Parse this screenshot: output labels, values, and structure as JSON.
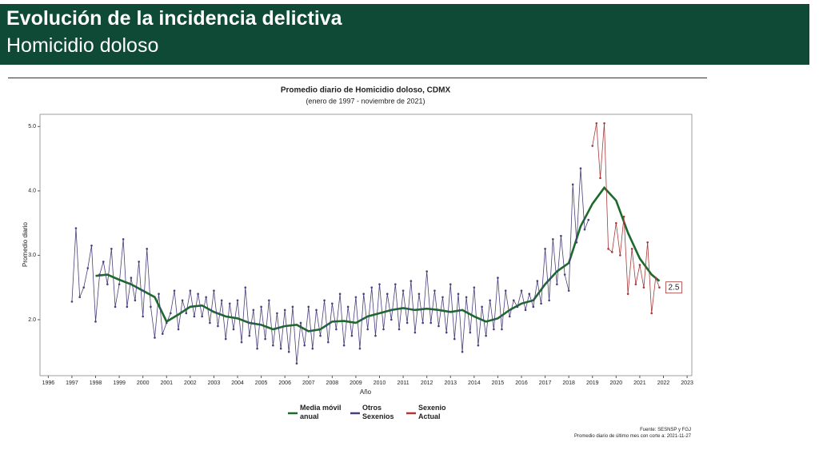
{
  "header": {
    "title": "Evolución de la incidencia delictiva",
    "subtitle": "Homicidio doloso"
  },
  "chart_data": {
    "type": "line",
    "title": "Promedio diario de Homicidio doloso, CDMX",
    "subtitle": "(enero de 1997 - noviembre de 2021)",
    "x_label": "Año",
    "y_label": "Promedio diario",
    "xlim": [
      1995.65,
      2023.2
    ],
    "xticks": [
      1996,
      1997,
      1998,
      1999,
      2000,
      2001,
      2002,
      2003,
      2004,
      2005,
      2006,
      2007,
      2008,
      2009,
      2010,
      2011,
      2012,
      2013,
      2014,
      2015,
      2016,
      2017,
      2018,
      2019,
      2020,
      2021,
      2022,
      2023
    ],
    "ylim": [
      1.13,
      5.19
    ],
    "yticks": [
      {
        "value": 2,
        "label": "2.0"
      },
      {
        "value": 3,
        "label": "3.0"
      },
      {
        "value": 4,
        "label": "4.0"
      },
      {
        "value": 5,
        "label": "5.0"
      }
    ],
    "series": [
      {
        "name": "Media móvil anual",
        "color": "#1d6b2c",
        "points": false,
        "x": [
          1998.0,
          1998.5,
          1999.0,
          1999.5,
          2000.0,
          2000.5,
          2001.0,
          2001.5,
          2002.0,
          2002.5,
          2003.0,
          2003.5,
          2004.0,
          2004.5,
          2005.0,
          2005.5,
          2006.0,
          2006.5,
          2007.0,
          2007.5,
          2008.0,
          2008.5,
          2009.0,
          2009.5,
          2010.0,
          2010.5,
          2011.0,
          2011.5,
          2012.0,
          2012.5,
          2013.0,
          2013.5,
          2014.0,
          2014.5,
          2015.0,
          2015.5,
          2016.0,
          2016.5,
          2017.0,
          2017.5,
          2018.0,
          2018.5,
          2019.0,
          2019.5,
          2020.0,
          2020.5,
          2021.0,
          2021.5,
          2021.83
        ],
        "values": [
          2.68,
          2.7,
          2.62,
          2.55,
          2.45,
          2.35,
          1.97,
          2.08,
          2.2,
          2.22,
          2.12,
          2.05,
          2.02,
          1.95,
          1.92,
          1.85,
          1.9,
          1.92,
          1.82,
          1.85,
          1.97,
          1.98,
          1.95,
          2.05,
          2.1,
          2.15,
          2.18,
          2.15,
          2.17,
          2.15,
          2.12,
          2.15,
          2.05,
          1.97,
          2.02,
          2.15,
          2.25,
          2.3,
          2.55,
          2.75,
          2.88,
          3.45,
          3.8,
          4.05,
          3.85,
          3.35,
          2.95,
          2.7,
          2.6
        ]
      },
      {
        "name": "Otros Sexenios",
        "color": "#4a3f7a",
        "points": true,
        "x": [
          1997.0,
          1997.17,
          1997.33,
          1997.5,
          1997.67,
          1997.83,
          1998.0,
          1998.17,
          1998.33,
          1998.5,
          1998.67,
          1998.83,
          1999.0,
          1999.17,
          1999.33,
          1999.5,
          1999.67,
          1999.83,
          2000.0,
          2000.17,
          2000.33,
          2000.5,
          2000.67,
          2000.83,
          2001.0,
          2001.17,
          2001.33,
          2001.5,
          2001.67,
          2001.83,
          2002.0,
          2002.17,
          2002.33,
          2002.5,
          2002.67,
          2002.83,
          2003.0,
          2003.17,
          2003.33,
          2003.5,
          2003.67,
          2003.83,
          2004.0,
          2004.17,
          2004.33,
          2004.5,
          2004.67,
          2004.83,
          2005.0,
          2005.17,
          2005.33,
          2005.5,
          2005.67,
          2005.83,
          2006.0,
          2006.17,
          2006.33,
          2006.5,
          2006.67,
          2006.83,
          2007.0,
          2007.17,
          2007.33,
          2007.5,
          2007.67,
          2007.83,
          2008.0,
          2008.17,
          2008.33,
          2008.5,
          2008.67,
          2008.83,
          2009.0,
          2009.17,
          2009.33,
          2009.5,
          2009.67,
          2009.83,
          2010.0,
          2010.17,
          2010.33,
          2010.5,
          2010.67,
          2010.83,
          2011.0,
          2011.17,
          2011.33,
          2011.5,
          2011.67,
          2011.83,
          2012.0,
          2012.17,
          2012.33,
          2012.5,
          2012.67,
          2012.83,
          2013.0,
          2013.17,
          2013.33,
          2013.5,
          2013.67,
          2013.83,
          2014.0,
          2014.17,
          2014.33,
          2014.5,
          2014.67,
          2014.83,
          2015.0,
          2015.17,
          2015.33,
          2015.5,
          2015.67,
          2015.83,
          2016.0,
          2016.17,
          2016.33,
          2016.5,
          2016.67,
          2016.83,
          2017.0,
          2017.17,
          2017.33,
          2017.5,
          2017.67,
          2017.83,
          2018.0,
          2018.17,
          2018.33,
          2018.5,
          2018.67,
          2018.83
        ],
        "values": [
          2.28,
          3.42,
          2.35,
          2.5,
          2.8,
          3.15,
          1.97,
          2.7,
          2.9,
          2.55,
          3.1,
          2.2,
          2.55,
          3.25,
          2.2,
          2.65,
          2.3,
          2.9,
          2.05,
          3.1,
          2.2,
          1.72,
          2.4,
          1.78,
          1.95,
          2.1,
          2.45,
          1.85,
          2.3,
          2.1,
          2.45,
          2.05,
          2.4,
          2.05,
          2.35,
          1.95,
          2.45,
          1.9,
          2.3,
          1.7,
          2.25,
          1.85,
          2.3,
          1.65,
          2.5,
          1.75,
          2.15,
          1.55,
          2.2,
          1.7,
          2.3,
          1.6,
          2.1,
          1.55,
          2.15,
          1.5,
          2.2,
          1.32,
          1.95,
          1.6,
          2.2,
          1.55,
          2.15,
          1.75,
          2.3,
          1.65,
          2.25,
          1.85,
          2.4,
          1.6,
          2.2,
          1.75,
          2.35,
          1.55,
          2.4,
          1.85,
          2.5,
          1.75,
          2.55,
          1.85,
          2.4,
          2.0,
          2.55,
          1.85,
          2.45,
          1.95,
          2.6,
          1.8,
          2.4,
          1.95,
          2.75,
          1.95,
          2.45,
          1.9,
          2.35,
          1.8,
          2.55,
          1.7,
          2.4,
          1.5,
          2.35,
          1.8,
          2.5,
          1.6,
          2.2,
          1.75,
          2.3,
          1.85,
          2.65,
          1.85,
          2.45,
          2.05,
          2.3,
          2.2,
          2.45,
          2.15,
          2.4,
          2.2,
          2.6,
          2.25,
          3.1,
          2.3,
          3.25,
          2.55,
          3.3,
          2.7,
          2.45,
          4.1,
          3.2,
          4.35,
          3.4,
          3.55
        ]
      },
      {
        "name": "Sexenio Actual",
        "color": "#a83a3a",
        "points": true,
        "x": [
          2019.0,
          2019.17,
          2019.33,
          2019.5,
          2019.67,
          2019.83,
          2020.0,
          2020.17,
          2020.33,
          2020.5,
          2020.67,
          2020.83,
          2021.0,
          2021.17,
          2021.33,
          2021.5,
          2021.67,
          2021.83
        ],
        "values": [
          4.7,
          5.05,
          4.2,
          5.05,
          3.1,
          3.05,
          3.5,
          3.0,
          3.6,
          2.4,
          3.1,
          2.55,
          2.85,
          2.5,
          3.2,
          2.1,
          2.65,
          2.5
        ]
      }
    ],
    "source": "Fuente: SESNSP y FGJ",
    "note": "Promedio diario de último mes con corte a: 2021-11-27"
  }
}
